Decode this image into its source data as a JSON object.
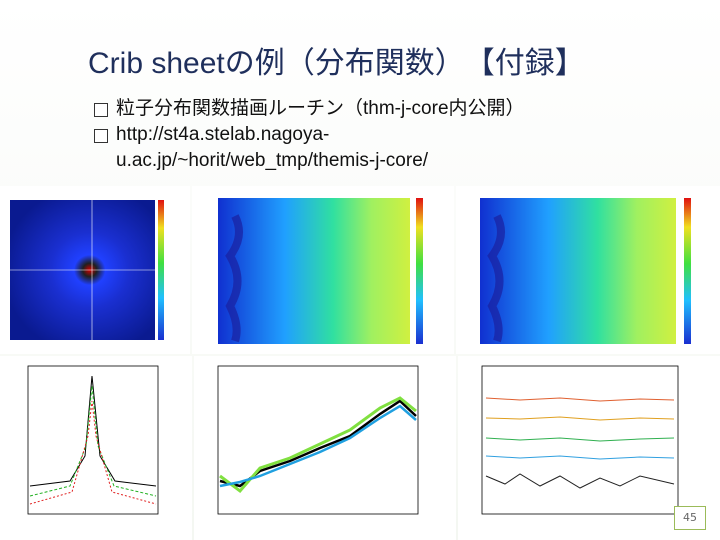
{
  "slide": {
    "title": "Crib sheetの例（分布関数）　【付録】",
    "bullets": [
      "粒子分布関数描画ルーチン（thm-j-core内公開）",
      "http://st4a.stelab.nagoya-u.ac.jp/~horit/web_tmp/themis-j-core/"
    ],
    "page_number": "45"
  }
}
